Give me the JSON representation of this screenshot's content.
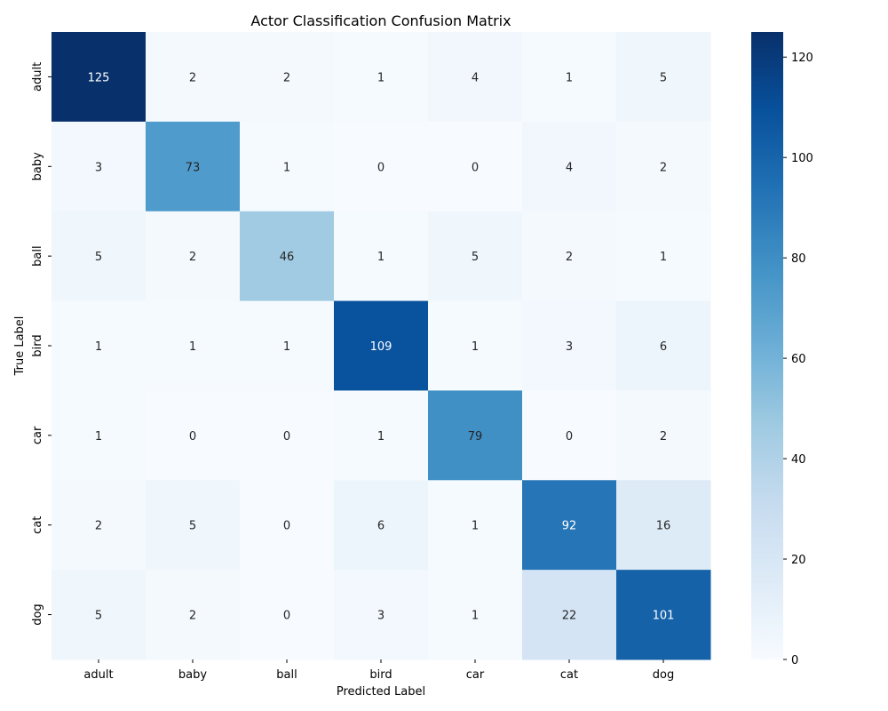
{
  "chart_data": {
    "type": "heatmap",
    "title": "Actor Classification Confusion Matrix",
    "xlabel": "Predicted Label",
    "ylabel": "True Label",
    "x_categories": [
      "adult",
      "baby",
      "ball",
      "bird",
      "car",
      "cat",
      "dog"
    ],
    "y_categories": [
      "adult",
      "baby",
      "ball",
      "bird",
      "car",
      "cat",
      "dog"
    ],
    "values": [
      [
        125,
        2,
        2,
        1,
        4,
        1,
        5
      ],
      [
        3,
        73,
        1,
        0,
        0,
        4,
        2
      ],
      [
        5,
        2,
        46,
        1,
        5,
        2,
        1
      ],
      [
        1,
        1,
        1,
        109,
        1,
        3,
        6
      ],
      [
        1,
        0,
        0,
        1,
        79,
        0,
        2
      ],
      [
        2,
        5,
        0,
        6,
        1,
        92,
        16
      ],
      [
        5,
        2,
        0,
        3,
        1,
        22,
        101
      ]
    ],
    "colormap": "Blues",
    "colorbar": {
      "min": 0,
      "max": 125,
      "ticks": [
        0,
        20,
        40,
        60,
        80,
        100,
        120
      ]
    },
    "annotations": true,
    "grid": false
  }
}
